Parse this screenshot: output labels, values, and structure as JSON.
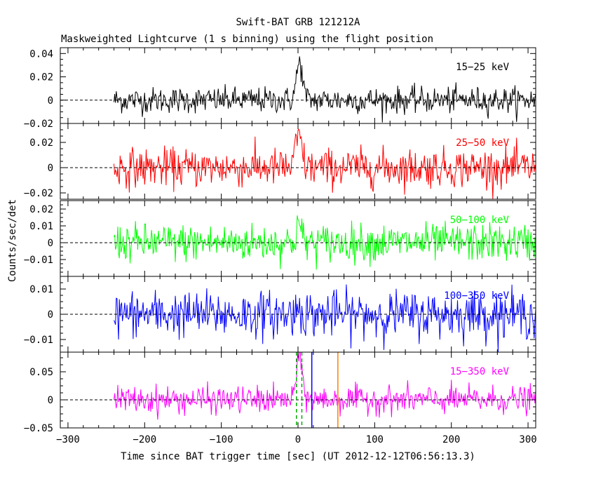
{
  "chart_data": {
    "type": "line",
    "title": "Swift-BAT GRB 121212A",
    "subtitle": "Maskweighted Lightcurve (1 s binning) using the flight position",
    "xlabel": "Time since BAT trigger time [sec] (UT 2012-12-12T06:56:13.3)",
    "ylabel": "Counts/sec/det",
    "xlim": [
      -310,
      310
    ],
    "x_ticks": [
      -300,
      -200,
      -100,
      0,
      100,
      200,
      300
    ],
    "x_tick_labels": [
      "−300",
      "−200",
      "−100",
      "0",
      "100",
      "200",
      "300"
    ],
    "data_range": [
      -240,
      310
    ],
    "panels": [
      {
        "label": "15−25 keV",
        "color": "#000000",
        "ylim": [
          -0.02,
          0.045
        ],
        "y_ticks": [
          -0.02,
          0,
          0.02,
          0.04
        ],
        "y_tick_labels": [
          "−0.02",
          "0",
          "0.02",
          "0.04"
        ],
        "noise_sigma": 0.0055,
        "peak": {
          "t": 2,
          "amplitude": 0.032,
          "width": 4
        }
      },
      {
        "label": "25−50 keV",
        "color": "#ff0000",
        "ylim": [
          -0.025,
          0.035
        ],
        "y_ticks": [
          -0.02,
          0,
          0.02
        ],
        "y_tick_labels": [
          "−0.02",
          "0",
          "0.02"
        ],
        "noise_sigma": 0.0075,
        "peak": {
          "t": 1,
          "amplitude": 0.025,
          "width": 4
        }
      },
      {
        "label": "50−100 keV",
        "color": "#00ff00",
        "ylim": [
          -0.02,
          0.025
        ],
        "y_ticks": [
          -0.01,
          0,
          0.01,
          0.02
        ],
        "y_tick_labels": [
          "−0.01",
          "0",
          "0.01",
          "0.02"
        ],
        "noise_sigma": 0.0055,
        "peak": {
          "t": 1,
          "amplitude": 0.012,
          "width": 3
        }
      },
      {
        "label": "100−350 keV",
        "color": "#0000ff",
        "ylim": [
          -0.015,
          0.015
        ],
        "y_ticks": [
          -0.01,
          0,
          0.01
        ],
        "y_tick_labels": [
          "−0.01",
          "0",
          "0.01"
        ],
        "noise_sigma": 0.0045,
        "peak": {
          "t": 1,
          "amplitude": 0.003,
          "width": 3
        }
      },
      {
        "label": "15−350 keV",
        "color": "#ff00ff",
        "ylim": [
          -0.05,
          0.085
        ],
        "y_ticks": [
          -0.05,
          0,
          0.05
        ],
        "y_tick_labels": [
          "−0.05",
          "0",
          "0.05"
        ],
        "noise_sigma": 0.012,
        "peak": {
          "t": 2,
          "amplitude": 0.075,
          "width": 4
        }
      }
    ],
    "markers": [
      {
        "x": -2,
        "color": "#00aa00",
        "style": "dashed"
      },
      {
        "x": 5,
        "color": "#00aa00",
        "style": "dashed"
      },
      {
        "x": 18,
        "color": "#0000ff",
        "style": "solid"
      },
      {
        "x": 52,
        "color": "#ff8000",
        "style": "solid"
      }
    ]
  }
}
